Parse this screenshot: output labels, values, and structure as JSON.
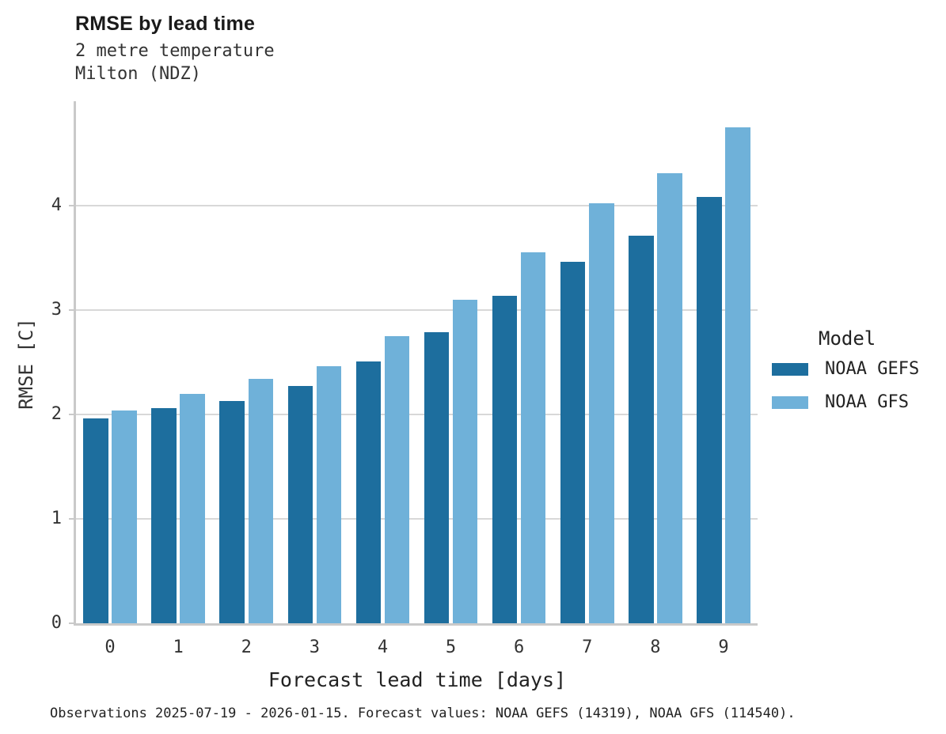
{
  "header": {
    "title": "RMSE by lead time",
    "subtitle_line1": "2 metre temperature",
    "subtitle_line2": "Milton (NDZ)"
  },
  "footer": {
    "text": "Observations 2025-07-19 - 2026-01-15. Forecast values: NOAA GEFS (14319), NOAA GFS (114540)."
  },
  "colors": {
    "noaa_gefs": "#1d6e9e",
    "noaa_gfs": "#6fb1d9",
    "gridline": "#d8d8d8",
    "axis": "#c9c9c9"
  },
  "chart_data": {
    "type": "bar",
    "title": "RMSE by lead time",
    "subtitle": [
      "2 metre temperature",
      "Milton (NDZ)"
    ],
    "categories": [
      "0",
      "1",
      "2",
      "3",
      "4",
      "5",
      "6",
      "7",
      "8",
      "9"
    ],
    "series": [
      {
        "name": "NOAA GEFS",
        "color": "#1d6e9e",
        "values": [
          1.96,
          2.06,
          2.13,
          2.27,
          2.51,
          2.79,
          3.14,
          3.46,
          3.71,
          4.08
        ]
      },
      {
        "name": "NOAA GFS",
        "color": "#6fb1d9",
        "values": [
          2.04,
          2.2,
          2.34,
          2.46,
          2.75,
          3.1,
          3.55,
          4.02,
          4.31,
          4.75
        ]
      }
    ],
    "xlabel": "Forecast lead time [days]",
    "ylabel": "RMSE [C]",
    "ylim": [
      0,
      5.0
    ],
    "yticks": [
      0,
      1,
      2,
      3,
      4
    ],
    "grid": "horizontal",
    "legend_title": "Model",
    "legend_position": "right",
    "caption": "Observations 2025-07-19 - 2026-01-15. Forecast values: NOAA GEFS (14319), NOAA GFS (114540)."
  }
}
